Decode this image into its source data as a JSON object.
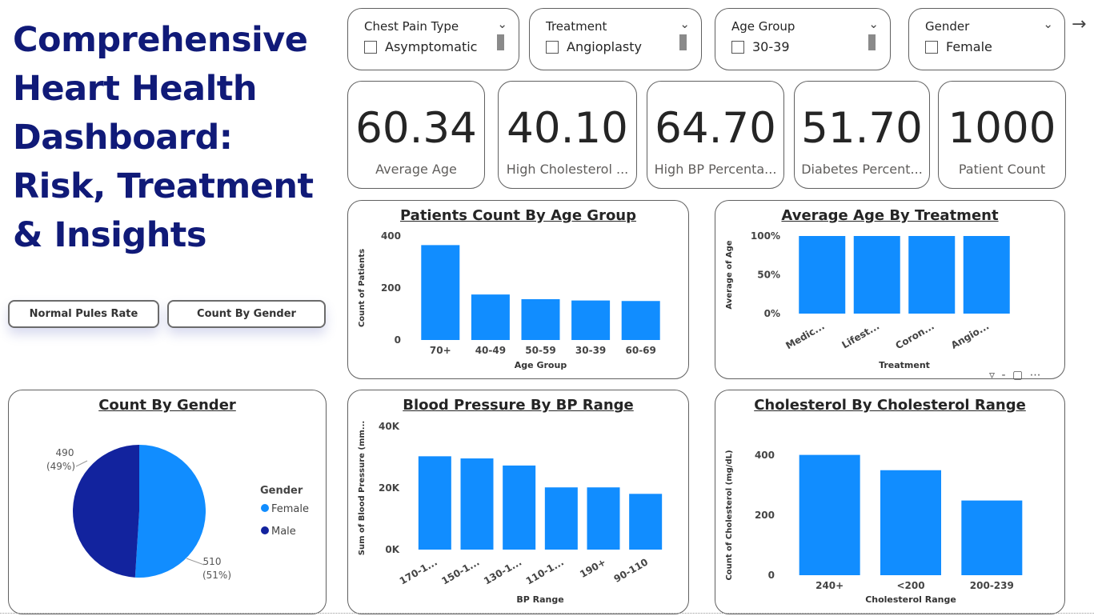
{
  "dashboard": {
    "title": "Comprehensive Heart Health Dashboard: Risk, Treatment & Insights"
  },
  "nav_buttons": {
    "pulse": "Normal Pules Rate",
    "gender": "Count By Gender"
  },
  "slicers": [
    {
      "label": "Chest Pain Type",
      "value": "Asymptomatic"
    },
    {
      "label": "Treatment",
      "value": "Angioplasty"
    },
    {
      "label": "Age Group",
      "value": "30-39"
    },
    {
      "label": "Gender",
      "value": "Female"
    }
  ],
  "kpis": [
    {
      "value": "60.34",
      "label": "Average Age"
    },
    {
      "value": "40.10",
      "label": "High Cholesterol ..."
    },
    {
      "value": "64.70",
      "label": "High BP Percenta..."
    },
    {
      "value": "51.70",
      "label": "Diabetes Percent..."
    },
    {
      "value": "1000",
      "label": "Patient Count"
    }
  ],
  "icons": {
    "arrow": "arrow-right-icon",
    "chevron": "chevron-down-icon",
    "filter": "filter-icon",
    "focus": "focus-mode-icon",
    "more": "more-options-icon"
  },
  "colors": {
    "bar": "#118dff",
    "female": "#118dff",
    "male": "#12239e",
    "title": "#101a78"
  },
  "chart_data": [
    {
      "type": "bar",
      "title": "Patients Count By Age Group",
      "xlabel": "Age Group",
      "ylabel": "Count of Patients",
      "categories": [
        "70+",
        "40-49",
        "50-59",
        "30-39",
        "60-69"
      ],
      "values": [
        365,
        175,
        157,
        152,
        150
      ],
      "ylim": [
        0,
        400
      ],
      "yticks": [
        "0",
        "200",
        "400"
      ],
      "ytick_values": [
        0,
        200,
        400
      ]
    },
    {
      "type": "bar",
      "title": "Average Age By Treatment",
      "xlabel": "Treatment",
      "ylabel": "Average of Age",
      "categories": [
        "Medic...",
        "Lifest...",
        "Coron...",
        "Angio..."
      ],
      "values": [
        100,
        100,
        100,
        100
      ],
      "ylim": [
        0,
        100
      ],
      "yticks": [
        "0%",
        "50%",
        "100%"
      ],
      "ytick_values": [
        0,
        50,
        100
      ]
    },
    {
      "type": "pie",
      "title": "Count By Gender",
      "legend_title": "Gender",
      "legend_position": "right",
      "labels": [
        "Female",
        "Male"
      ],
      "values": [
        510,
        490
      ],
      "data_labels": [
        "510\n(51%)",
        "490\n(49%)"
      ]
    },
    {
      "type": "bar",
      "title": "Blood Pressure By BP Range",
      "xlabel": "BP Range",
      "ylabel": "Sum of Blood Pressure (mm...",
      "categories": [
        "170-1...",
        "150-1...",
        "130-1...",
        "110-1...",
        "190+",
        "90-110"
      ],
      "values": [
        30300,
        29600,
        27300,
        20200,
        20200,
        18100
      ],
      "ylim": [
        0,
        40000
      ],
      "yticks": [
        "0K",
        "20K",
        "40K"
      ],
      "ytick_values": [
        0,
        20000,
        40000
      ]
    },
    {
      "type": "bar",
      "title": "Cholesterol By Cholesterol Range",
      "xlabel": "Cholesterol Range",
      "ylabel": "Count of Cholesterol (mg/dL)",
      "categories": [
        "240+",
        "<200",
        "200-239"
      ],
      "values": [
        401,
        350,
        249
      ],
      "ylim": [
        0,
        400
      ],
      "yticks": [
        "0",
        "200",
        "400"
      ],
      "ytick_values": [
        0,
        200,
        400
      ]
    }
  ]
}
